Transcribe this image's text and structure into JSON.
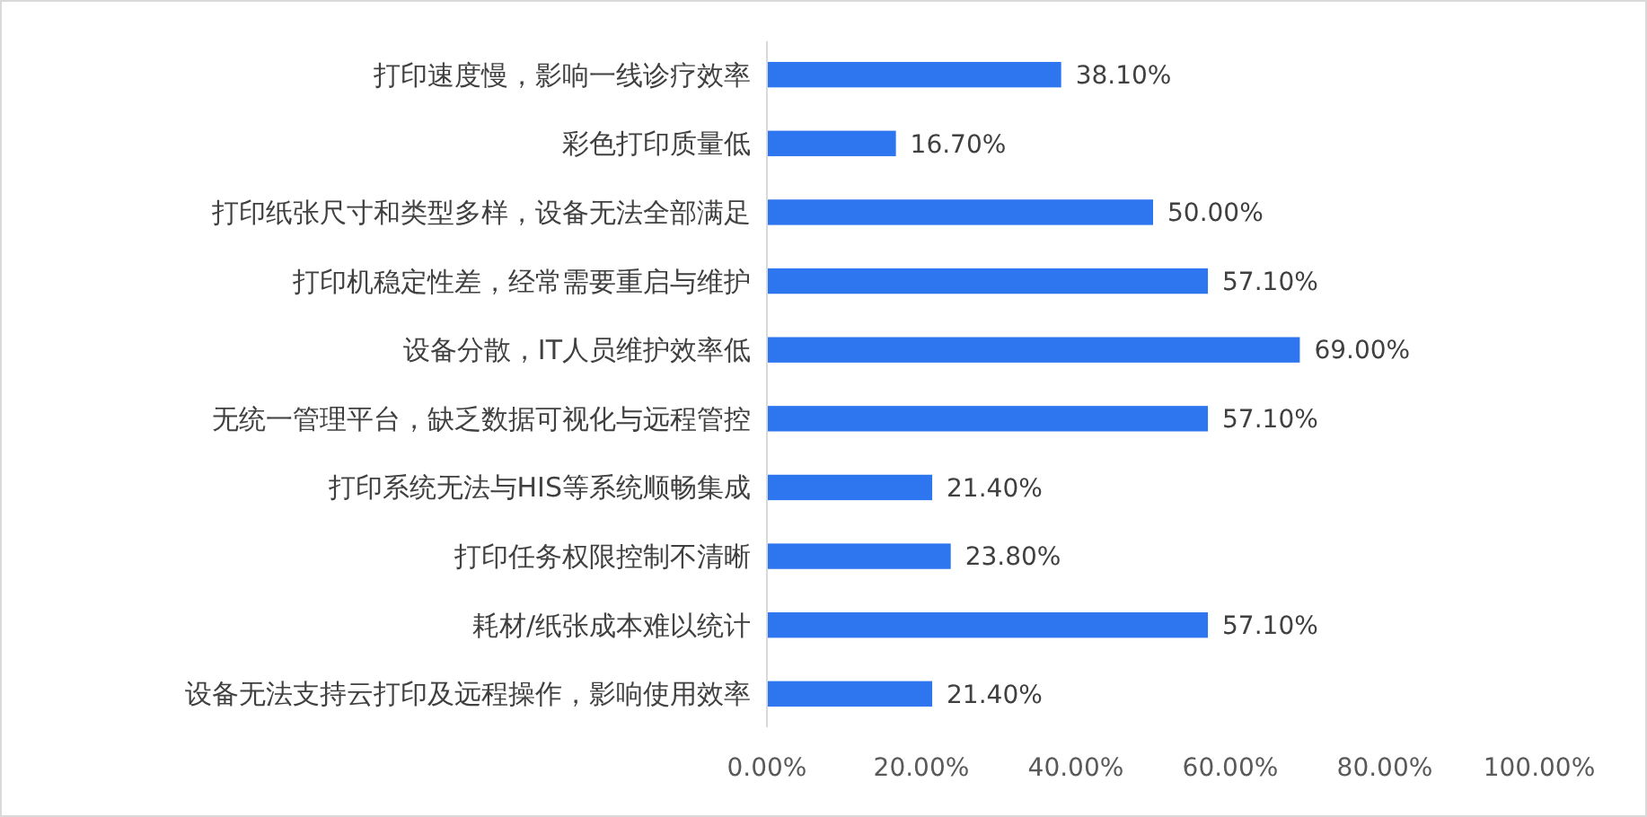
{
  "chart_data": {
    "type": "bar",
    "orientation": "horizontal",
    "categories": [
      "打印速度慢，影响一线诊疗效率",
      "彩色打印质量低",
      "打印纸张尺寸和类型多样，设备无法全部满足",
      "打印机稳定性差，经常需要重启与维护",
      "设备分散，IT人员维护效率低",
      "无统一管理平台，缺乏数据可视化与远程管控",
      "打印系统无法与HIS等系统顺畅集成",
      "打印任务权限控制不清晰",
      "耗材/纸张成本难以统计",
      "设备无法支持云打印及远程操作，影响使用效率"
    ],
    "values": [
      38.1,
      16.7,
      50.0,
      57.1,
      69.0,
      57.1,
      21.4,
      23.8,
      57.1,
      21.4
    ],
    "value_labels": [
      "38.10%",
      "16.70%",
      "50.00%",
      "57.10%",
      "69.00%",
      "57.10%",
      "21.40%",
      "23.80%",
      "57.10%",
      "21.40%"
    ],
    "color": "#2e75f0",
    "xlim": [
      0,
      100
    ],
    "xticks": [
      {
        "value": 0,
        "label": "0.00%"
      },
      {
        "value": 20,
        "label": "20.00%"
      },
      {
        "value": 40,
        "label": "40.00%"
      },
      {
        "value": 60,
        "label": "60.00%"
      },
      {
        "value": 80,
        "label": "80.00%"
      },
      {
        "value": 100,
        "label": "100.00%"
      }
    ],
    "grid": false
  }
}
